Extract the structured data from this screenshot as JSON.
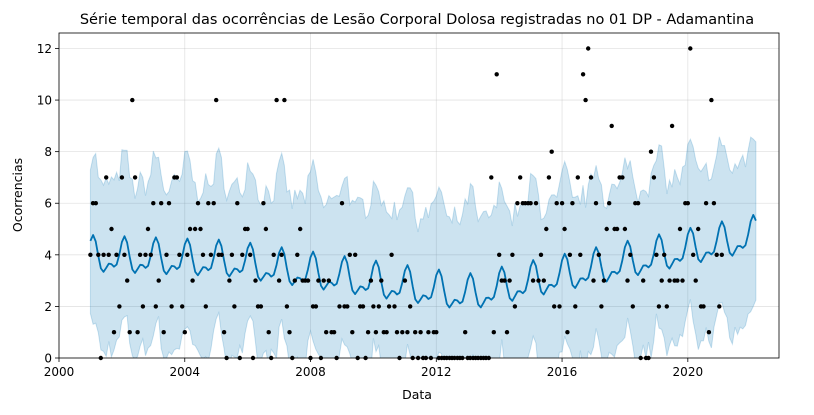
{
  "chart_data": {
    "type": "line",
    "title": "Série temporal das ocorrências de Lesão Corporal Dolosa registradas no 01 DP - Adamantina",
    "xlabel": "Data",
    "ylabel": "Ocorrencias",
    "xlim": [
      2000,
      2022.9
    ],
    "ylim": [
      0,
      12.6
    ],
    "x_ticks": [
      2000,
      2004,
      2008,
      2012,
      2016,
      2020
    ],
    "x_tick_labels": [
      "2000",
      "2004",
      "2008",
      "2012",
      "2016",
      "2020"
    ],
    "y_ticks": [
      0,
      2,
      4,
      6,
      8,
      10,
      12
    ],
    "y_tick_labels": [
      "0",
      "2",
      "4",
      "6",
      "8",
      "10",
      "12"
    ],
    "grid": true,
    "legend": "none",
    "colors": {
      "forecast_line": "#0072b2",
      "interval_fill": "#0072b2",
      "points": "#000000"
    },
    "forecast": {
      "x_start": 2001.0,
      "x_end": 2022.17,
      "samples_per_year": 12,
      "trend": [
        [
          2001.0,
          3.9
        ],
        [
          2005.5,
          3.7
        ],
        [
          2013.0,
          2.4
        ],
        [
          2022.17,
          4.7
        ]
      ],
      "seasonal_amplitude": 0.55,
      "interval_half_width": 3.2
    },
    "observations": [
      [
        2001.0,
        4
      ],
      [
        2001.08,
        6
      ],
      [
        2001.17,
        6
      ],
      [
        2001.25,
        4
      ],
      [
        2001.33,
        0
      ],
      [
        2001.42,
        4
      ],
      [
        2001.5,
        7
      ],
      [
        2001.58,
        4
      ],
      [
        2001.67,
        5
      ],
      [
        2001.75,
        1
      ],
      [
        2001.83,
        4
      ],
      [
        2001.92,
        2
      ],
      [
        2002.0,
        7
      ],
      [
        2002.08,
        4
      ],
      [
        2002.17,
        3
      ],
      [
        2002.25,
        1
      ],
      [
        2002.33,
        10
      ],
      [
        2002.42,
        7
      ],
      [
        2002.5,
        1
      ],
      [
        2002.58,
        4
      ],
      [
        2002.67,
        2
      ],
      [
        2002.75,
        4
      ],
      [
        2002.83,
        5
      ],
      [
        2002.92,
        4
      ],
      [
        2003.0,
        6
      ],
      [
        2003.08,
        2
      ],
      [
        2003.17,
        3
      ],
      [
        2003.25,
        6
      ],
      [
        2003.33,
        1
      ],
      [
        2003.42,
        4
      ],
      [
        2003.5,
        6
      ],
      [
        2003.58,
        2
      ],
      [
        2003.67,
        7
      ],
      [
        2003.75,
        7
      ],
      [
        2003.83,
        4
      ],
      [
        2003.92,
        2
      ],
      [
        2004.0,
        1
      ],
      [
        2004.08,
        4
      ],
      [
        2004.17,
        5
      ],
      [
        2004.25,
        3
      ],
      [
        2004.33,
        5
      ],
      [
        2004.42,
        6
      ],
      [
        2004.5,
        5
      ],
      [
        2004.58,
        4
      ],
      [
        2004.67,
        2
      ],
      [
        2004.75,
        6
      ],
      [
        2004.83,
        4
      ],
      [
        2004.92,
        6
      ],
      [
        2005.0,
        10
      ],
      [
        2005.08,
        4
      ],
      [
        2005.17,
        4
      ],
      [
        2005.25,
        1
      ],
      [
        2005.33,
        0
      ],
      [
        2005.42,
        3
      ],
      [
        2005.5,
        4
      ],
      [
        2005.58,
        2
      ],
      [
        2005.67,
        6
      ],
      [
        2005.75,
        0
      ],
      [
        2005.83,
        4
      ],
      [
        2005.92,
        5
      ],
      [
        2006.0,
        5
      ],
      [
        2006.08,
        4
      ],
      [
        2006.17,
        0
      ],
      [
        2006.25,
        3
      ],
      [
        2006.33,
        2
      ],
      [
        2006.42,
        2
      ],
      [
        2006.5,
        6
      ],
      [
        2006.58,
        5
      ],
      [
        2006.67,
        1
      ],
      [
        2006.75,
        0
      ],
      [
        2006.83,
        4
      ],
      [
        2006.92,
        10
      ],
      [
        2007.0,
        3
      ],
      [
        2007.08,
        4
      ],
      [
        2007.17,
        10
      ],
      [
        2007.25,
        2
      ],
      [
        2007.33,
        1
      ],
      [
        2007.42,
        0
      ],
      [
        2007.5,
        3
      ],
      [
        2007.58,
        4
      ],
      [
        2007.67,
        5
      ],
      [
        2007.75,
        3
      ],
      [
        2007.83,
        3
      ],
      [
        2007.92,
        3
      ],
      [
        2008.0,
        0
      ],
      [
        2008.08,
        2
      ],
      [
        2008.17,
        2
      ],
      [
        2008.25,
        3
      ],
      [
        2008.33,
        0
      ],
      [
        2008.42,
        3
      ],
      [
        2008.5,
        1
      ],
      [
        2008.58,
        3
      ],
      [
        2008.67,
        1
      ],
      [
        2008.75,
        1
      ],
      [
        2008.83,
        0
      ],
      [
        2008.92,
        2
      ],
      [
        2009.0,
        6
      ],
      [
        2009.08,
        2
      ],
      [
        2009.17,
        2
      ],
      [
        2009.25,
        4
      ],
      [
        2009.33,
        1
      ],
      [
        2009.42,
        4
      ],
      [
        2009.5,
        0
      ],
      [
        2009.58,
        2
      ],
      [
        2009.67,
        2
      ],
      [
        2009.75,
        0
      ],
      [
        2009.83,
        1
      ],
      [
        2009.92,
        3
      ],
      [
        2010.0,
        2
      ],
      [
        2010.08,
        1
      ],
      [
        2010.17,
        2
      ],
      [
        2010.25,
        3
      ],
      [
        2010.33,
        1
      ],
      [
        2010.42,
        1
      ],
      [
        2010.5,
        2
      ],
      [
        2010.58,
        4
      ],
      [
        2010.67,
        2
      ],
      [
        2010.75,
        1
      ],
      [
        2010.83,
        0
      ],
      [
        2010.92,
        1
      ],
      [
        2011.0,
        3
      ],
      [
        2011.08,
        1
      ],
      [
        2011.17,
        2
      ],
      [
        2011.25,
        0
      ],
      [
        2011.33,
        1
      ],
      [
        2011.42,
        0
      ],
      [
        2011.5,
        1
      ],
      [
        2011.58,
        0
      ],
      [
        2011.67,
        0
      ],
      [
        2011.75,
        1
      ],
      [
        2011.83,
        0
      ],
      [
        2011.92,
        1
      ],
      [
        2012.0,
        1
      ],
      [
        2012.08,
        0
      ],
      [
        2012.17,
        0
      ],
      [
        2012.25,
        0
      ],
      [
        2012.33,
        0
      ],
      [
        2012.42,
        0
      ],
      [
        2012.5,
        0
      ],
      [
        2012.58,
        0
      ],
      [
        2012.67,
        0
      ],
      [
        2012.75,
        0
      ],
      [
        2012.83,
        0
      ],
      [
        2012.92,
        1
      ],
      [
        2013.0,
        0
      ],
      [
        2013.08,
        0
      ],
      [
        2013.17,
        0
      ],
      [
        2013.25,
        0
      ],
      [
        2013.33,
        0
      ],
      [
        2013.42,
        0
      ],
      [
        2013.5,
        0
      ],
      [
        2013.58,
        0
      ],
      [
        2013.67,
        0
      ],
      [
        2013.75,
        7
      ],
      [
        2013.83,
        1
      ],
      [
        2013.92,
        11
      ],
      [
        2014.0,
        4
      ],
      [
        2014.08,
        3
      ],
      [
        2014.17,
        3
      ],
      [
        2014.25,
        1
      ],
      [
        2014.33,
        3
      ],
      [
        2014.42,
        4
      ],
      [
        2014.5,
        2
      ],
      [
        2014.58,
        6
      ],
      [
        2014.67,
        7
      ],
      [
        2014.75,
        6
      ],
      [
        2014.83,
        6
      ],
      [
        2014.92,
        6
      ],
      [
        2015.0,
        6
      ],
      [
        2015.08,
        3
      ],
      [
        2015.17,
        6
      ],
      [
        2015.25,
        3
      ],
      [
        2015.33,
        4
      ],
      [
        2015.42,
        3
      ],
      [
        2015.5,
        5
      ],
      [
        2015.58,
        7
      ],
      [
        2015.67,
        8
      ],
      [
        2015.75,
        2
      ],
      [
        2015.83,
        6
      ],
      [
        2015.92,
        2
      ],
      [
        2016.0,
        6
      ],
      [
        2016.08,
        5
      ],
      [
        2016.17,
        1
      ],
      [
        2016.25,
        4
      ],
      [
        2016.33,
        6
      ],
      [
        2016.42,
        2
      ],
      [
        2016.5,
        7
      ],
      [
        2016.58,
        4
      ],
      [
        2016.67,
        11
      ],
      [
        2016.75,
        10
      ],
      [
        2016.83,
        12
      ],
      [
        2016.92,
        7
      ],
      [
        2017.0,
        3
      ],
      [
        2017.08,
        6
      ],
      [
        2017.17,
        4
      ],
      [
        2017.25,
        2
      ],
      [
        2017.33,
        3
      ],
      [
        2017.42,
        5
      ],
      [
        2017.5,
        6
      ],
      [
        2017.58,
        9
      ],
      [
        2017.67,
        5
      ],
      [
        2017.75,
        5
      ],
      [
        2017.83,
        7
      ],
      [
        2017.92,
        7
      ],
      [
        2018.0,
        5
      ],
      [
        2018.08,
        3
      ],
      [
        2018.17,
        4
      ],
      [
        2018.25,
        2
      ],
      [
        2018.33,
        6
      ],
      [
        2018.42,
        6
      ],
      [
        2018.5,
        0
      ],
      [
        2018.58,
        3
      ],
      [
        2018.67,
        0
      ],
      [
        2018.75,
        0
      ],
      [
        2018.83,
        8
      ],
      [
        2018.92,
        7
      ],
      [
        2019.0,
        4
      ],
      [
        2019.08,
        2
      ],
      [
        2019.17,
        3
      ],
      [
        2019.25,
        4
      ],
      [
        2019.33,
        2
      ],
      [
        2019.42,
        3
      ],
      [
        2019.5,
        9
      ],
      [
        2019.58,
        3
      ],
      [
        2019.67,
        3
      ],
      [
        2019.75,
        5
      ],
      [
        2019.83,
        3
      ],
      [
        2019.92,
        6
      ],
      [
        2020.0,
        6
      ],
      [
        2020.08,
        12
      ],
      [
        2020.17,
        4
      ],
      [
        2020.25,
        3
      ],
      [
        2020.33,
        5
      ],
      [
        2020.42,
        2
      ],
      [
        2020.5,
        2
      ],
      [
        2020.58,
        6
      ],
      [
        2020.67,
        1
      ],
      [
        2020.75,
        10
      ],
      [
        2020.83,
        6
      ],
      [
        2020.92,
        4
      ],
      [
        2021.0,
        2
      ],
      [
        2021.08,
        4
      ]
    ]
  }
}
